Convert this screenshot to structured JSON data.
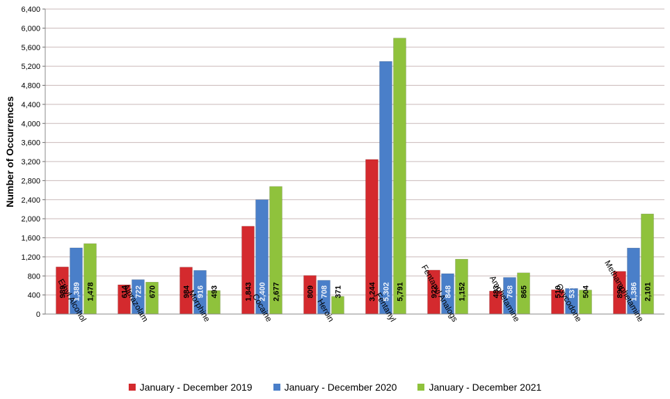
{
  "chart_data": {
    "type": "bar",
    "ylabel": "Number of Occurrences",
    "ylim": [
      0,
      6400
    ],
    "yticks": [
      "0",
      "400",
      "800",
      "1,200",
      "1,600",
      "2,000",
      "2,400",
      "2,800",
      "3,200",
      "3,600",
      "4,000",
      "4,400",
      "4,800",
      "5,200",
      "5,600",
      "6,000",
      "6,400"
    ],
    "categories": [
      "Ethyl Alcohol",
      "Alprazolam",
      "Morphine",
      "Cocaine",
      "Heroin",
      "Fentanyl",
      "Fentanyl Analogs",
      "Amphetamine",
      "Oxycodone",
      "Methamphetamine"
    ],
    "series": [
      {
        "name": "January - December 2019",
        "color": "#d42a2e",
        "values": [
          989,
          614,
          984,
          1843,
          809,
          3244,
          922,
          483,
          510,
          896
        ],
        "labels": [
          "989",
          "614",
          "984",
          "1,843",
          "809",
          "3,244",
          "922",
          "483",
          "510",
          "896"
        ]
      },
      {
        "name": "January - December 2020",
        "color": "#4a7fc9",
        "values": [
          1389,
          722,
          916,
          2400,
          708,
          5302,
          848,
          768,
          537,
          1386
        ],
        "labels": [
          "1,389",
          "722",
          "916",
          "2,400",
          "708",
          "5,302",
          "848",
          "768",
          "537",
          "1,386"
        ]
      },
      {
        "name": "January - December 2021",
        "color": "#8fc23c",
        "values": [
          1478,
          670,
          493,
          2677,
          371,
          5791,
          1152,
          865,
          504,
          2101
        ],
        "labels": [
          "1,478",
          "670",
          "493",
          "2,677",
          "371",
          "5,791",
          "1,152",
          "865",
          "504",
          "2,101"
        ]
      }
    ],
    "grid": true,
    "legend": "bottom"
  }
}
